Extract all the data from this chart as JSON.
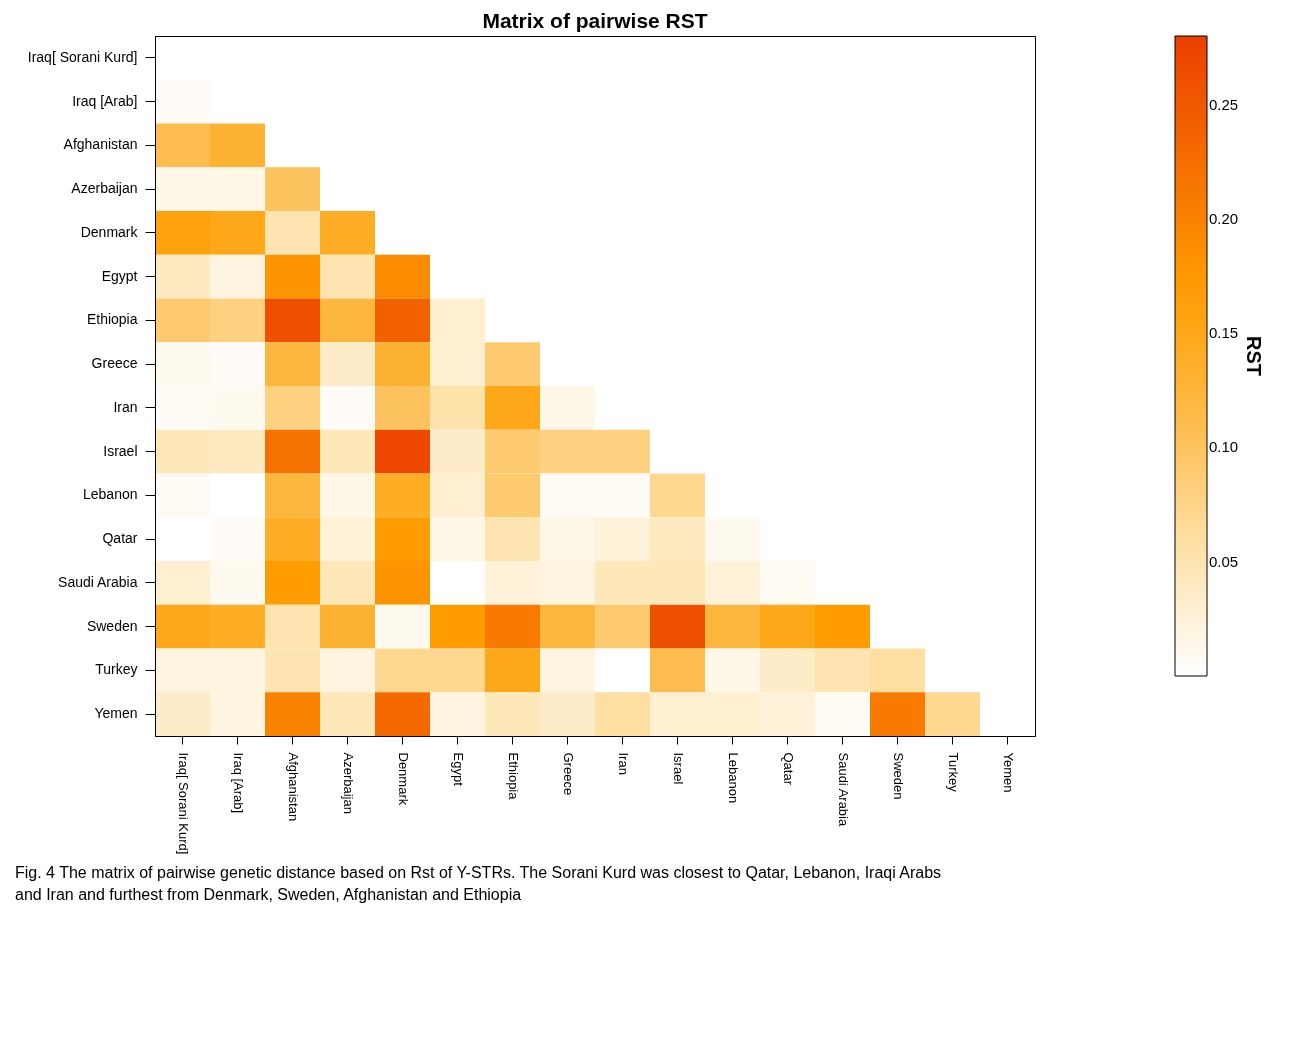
{
  "chart_data": {
    "type": "heatmap",
    "title": "Matrix of pairwise RST",
    "clabel": "RST",
    "categories": [
      "Iraq[ Sorani Kurd]",
      "Iraq [Arab]",
      "Afghanistan",
      "Azerbaijan",
      "Denmark",
      "Egypt",
      "Ethiopia",
      "Greece",
      "Iran",
      "Israel",
      "Lebanon",
      "Qatar",
      "Saudi Arabia",
      "Sweden",
      "Turkey",
      "Yemen"
    ],
    "y_categories": [
      "Iraq[ Sorani Kurd]",
      "Iraq [Arab]",
      "Afghanistan",
      "Azerbaijan",
      "Denmark",
      "Egypt",
      "Ethiopia",
      "Greece",
      "Iran",
      "Israel",
      "Lebanon",
      "Qatar",
      "Saudi Arabia",
      "Sweden",
      "Turkey",
      "Yemen"
    ],
    "cells": [
      [
        null,
        null,
        null,
        null,
        null,
        null,
        null,
        null,
        null,
        null,
        null,
        null,
        null,
        null,
        null,
        null
      ],
      [
        0.005,
        null,
        null,
        null,
        null,
        null,
        null,
        null,
        null,
        null,
        null,
        null,
        null,
        null,
        null,
        null
      ],
      [
        0.11,
        0.13,
        null,
        null,
        null,
        null,
        null,
        null,
        null,
        null,
        null,
        null,
        null,
        null,
        null,
        null
      ],
      [
        0.015,
        0.015,
        0.1,
        null,
        null,
        null,
        null,
        null,
        null,
        null,
        null,
        null,
        null,
        null,
        null,
        null
      ],
      [
        0.16,
        0.15,
        0.05,
        0.14,
        null,
        null,
        null,
        null,
        null,
        null,
        null,
        null,
        null,
        null,
        null,
        null
      ],
      [
        0.04,
        0.02,
        0.18,
        0.05,
        0.19,
        null,
        null,
        null,
        null,
        null,
        null,
        null,
        null,
        null,
        null,
        null
      ],
      [
        0.09,
        0.08,
        0.26,
        0.12,
        0.24,
        0.03,
        null,
        null,
        null,
        null,
        null,
        null,
        null,
        null,
        null,
        null
      ],
      [
        0.01,
        0.005,
        0.12,
        0.035,
        0.13,
        0.03,
        0.09,
        null,
        null,
        null,
        null,
        null,
        null,
        null,
        null,
        null
      ],
      [
        0.007,
        0.01,
        0.08,
        0.005,
        0.1,
        0.055,
        0.15,
        0.015,
        null,
        null,
        null,
        null,
        null,
        null,
        null,
        null
      ],
      [
        0.045,
        0.04,
        0.22,
        0.045,
        0.27,
        0.035,
        0.09,
        0.08,
        0.08,
        null,
        null,
        null,
        null,
        null,
        null,
        null
      ],
      [
        0.007,
        0.0,
        0.12,
        0.015,
        0.14,
        0.03,
        0.09,
        0.007,
        0.007,
        0.07,
        null,
        null,
        null,
        null,
        null,
        null
      ],
      [
        0.0,
        0.005,
        0.14,
        0.025,
        0.17,
        0.015,
        0.05,
        0.015,
        0.025,
        0.04,
        0.01,
        null,
        null,
        null,
        null,
        null
      ],
      [
        0.03,
        0.01,
        0.17,
        0.045,
        0.18,
        0.0,
        0.025,
        0.02,
        0.045,
        0.045,
        0.025,
        0.008,
        null,
        null,
        null,
        null
      ],
      [
        0.15,
        0.14,
        0.05,
        0.13,
        0.01,
        0.17,
        0.21,
        0.12,
        0.09,
        0.26,
        0.12,
        0.15,
        0.17,
        null,
        null,
        null
      ],
      [
        0.02,
        0.02,
        0.05,
        0.02,
        0.07,
        0.07,
        0.15,
        0.02,
        0.0,
        0.11,
        0.015,
        0.035,
        0.05,
        0.06,
        null,
        null
      ],
      [
        0.035,
        0.02,
        0.2,
        0.045,
        0.23,
        0.02,
        0.045,
        0.035,
        0.06,
        0.03,
        0.03,
        0.025,
        0.008,
        0.21,
        0.07,
        null
      ]
    ],
    "clim": [
      0,
      0.28
    ],
    "cticks": [
      0.05,
      {
        "value": 0.1,
        "label": "0.10"
      },
      0.15,
      {
        "value": 0.2,
        "label": "0.20"
      },
      0.25
    ],
    "annotations": [
      "Fig. 4 The matrix of pairwise genetic distance based on Rst of Y-STRs. The Sorani Kurd was closest to Qatar, Lebanon, Iraqi Arabs and Iran and furthest from Denmark, Sweden, Afghanistan and Ethiopia"
    ]
  }
}
